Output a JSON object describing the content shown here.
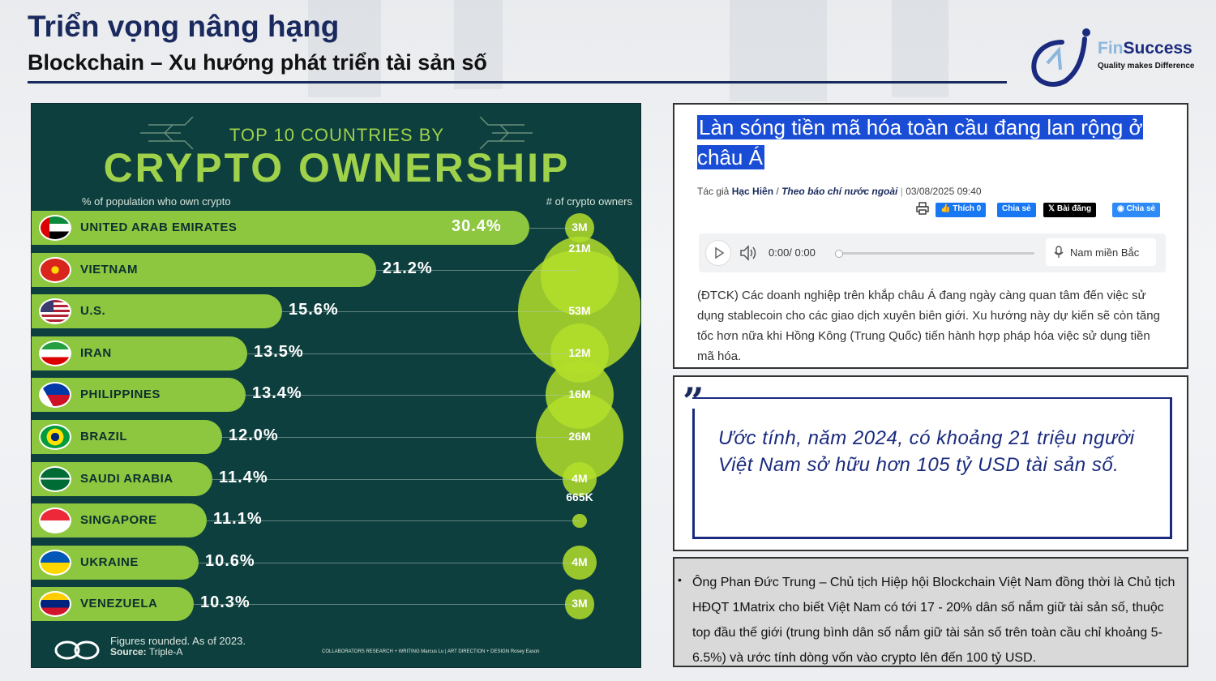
{
  "header": {
    "title": "Triển vọng nâng hạng",
    "subtitle": "Blockchain – Xu hướng phát triển tài sản số"
  },
  "logo": {
    "name_part1": "Fin",
    "name_part2": "Success",
    "tagline": "Quality makes Difference"
  },
  "infographic": {
    "top_line": "TOP 10 COUNTRIES BY",
    "headline": "CRYPTO OWNERSHIP",
    "left_label": "% of population who own crypto",
    "right_label": "# of crypto owners",
    "footer_line1": "Figures rounded. As of 2023.",
    "footer_source_label": "Source:",
    "footer_source": "Triple-A",
    "collaborators": "COLLABORATORS    RESEARCH + WRITING Marcus Lu  |  ART DIRECTION + DESIGN Rosey Eason"
  },
  "chart_data": {
    "type": "bar",
    "title": "CRYPTO OWNERSHIP",
    "ylabel": "% of population who own crypto",
    "categories": [
      "UNITED ARAB EMIRATES",
      "VIETNAM",
      "U.S.",
      "IRAN",
      "PHILIPPINES",
      "BRAZIL",
      "SAUDI ARABIA",
      "SINGAPORE",
      "UKRAINE",
      "VENEZUELA"
    ],
    "values": [
      30.4,
      21.2,
      15.6,
      13.5,
      13.4,
      12.0,
      11.4,
      11.1,
      10.6,
      10.3
    ],
    "value_labels": [
      "30.4%",
      "21.2%",
      "15.6%",
      "13.5%",
      "13.4%",
      "12.0%",
      "11.4%",
      "11.1%",
      "10.6%",
      "10.3%"
    ],
    "owners_label": "# of crypto owners",
    "owners": [
      "3M",
      "21M",
      "53M",
      "12M",
      "16M",
      "26M",
      "4M",
      "665K",
      "4M",
      "3M"
    ],
    "owners_millions": [
      3,
      21,
      53,
      12,
      16,
      26,
      4,
      0.665,
      4,
      3
    ],
    "flags": [
      "uae",
      "vietnam",
      "usa",
      "iran",
      "philippines",
      "brazil",
      "saudi-arabia",
      "singapore",
      "ukraine",
      "venezuela"
    ],
    "colors": {
      "bar": "#8dc63f",
      "bubble": "#b3de2a",
      "background": "#0d3f3f"
    }
  },
  "article": {
    "headline": "Làn sóng tiền mã hóa toàn cầu đang lan rộng ở châu Á",
    "author_prefix": "Tác giả",
    "author": "Hạc Hiên",
    "separator": "/",
    "source": "Theo báo chí nước ngoài",
    "datetime": "03/08/2025 09:40",
    "share_buttons": {
      "like": "Thích 0",
      "share_fb": "Chia sẻ",
      "x_post": "Bài đăng",
      "messenger": "Chia sẻ"
    },
    "player": {
      "time": "0:00/ 0:00",
      "voice": "Nam miền Bắc"
    },
    "lead": "(ĐTCK) Các doanh nghiệp trên khắp châu Á đang ngày càng quan tâm đến việc sử dụng stablecoin cho các giao dịch xuyên biên giới. Xu hướng này dự kiến sẽ còn tăng tốc hơn nữa khi Hồng Kông (Trung Quốc) tiến hành hợp pháp hóa việc sử dụng tiền mã hóa."
  },
  "quote": {
    "text": "Ước tính, năm 2024, có khoảng 21 triệu người Việt Nam sở hữu hơn 105 tỷ USD tài sản số."
  },
  "bullet": {
    "text": "Ông Phan Đức Trung – Chủ tịch Hiệp hội Blockchain Việt Nam đồng thời là Chủ tịch HĐQT 1Matrix cho biết Việt Nam có tới 17 - 20% dân số nắm giữ tài sản số, thuộc top đầu thế giới (trung bình dân số nắm giữ tài sản số trên toàn cầu chỉ khoảng 5-6.5%) và ước tính dòng vốn vào crypto lên đến 100 tỷ USD."
  }
}
